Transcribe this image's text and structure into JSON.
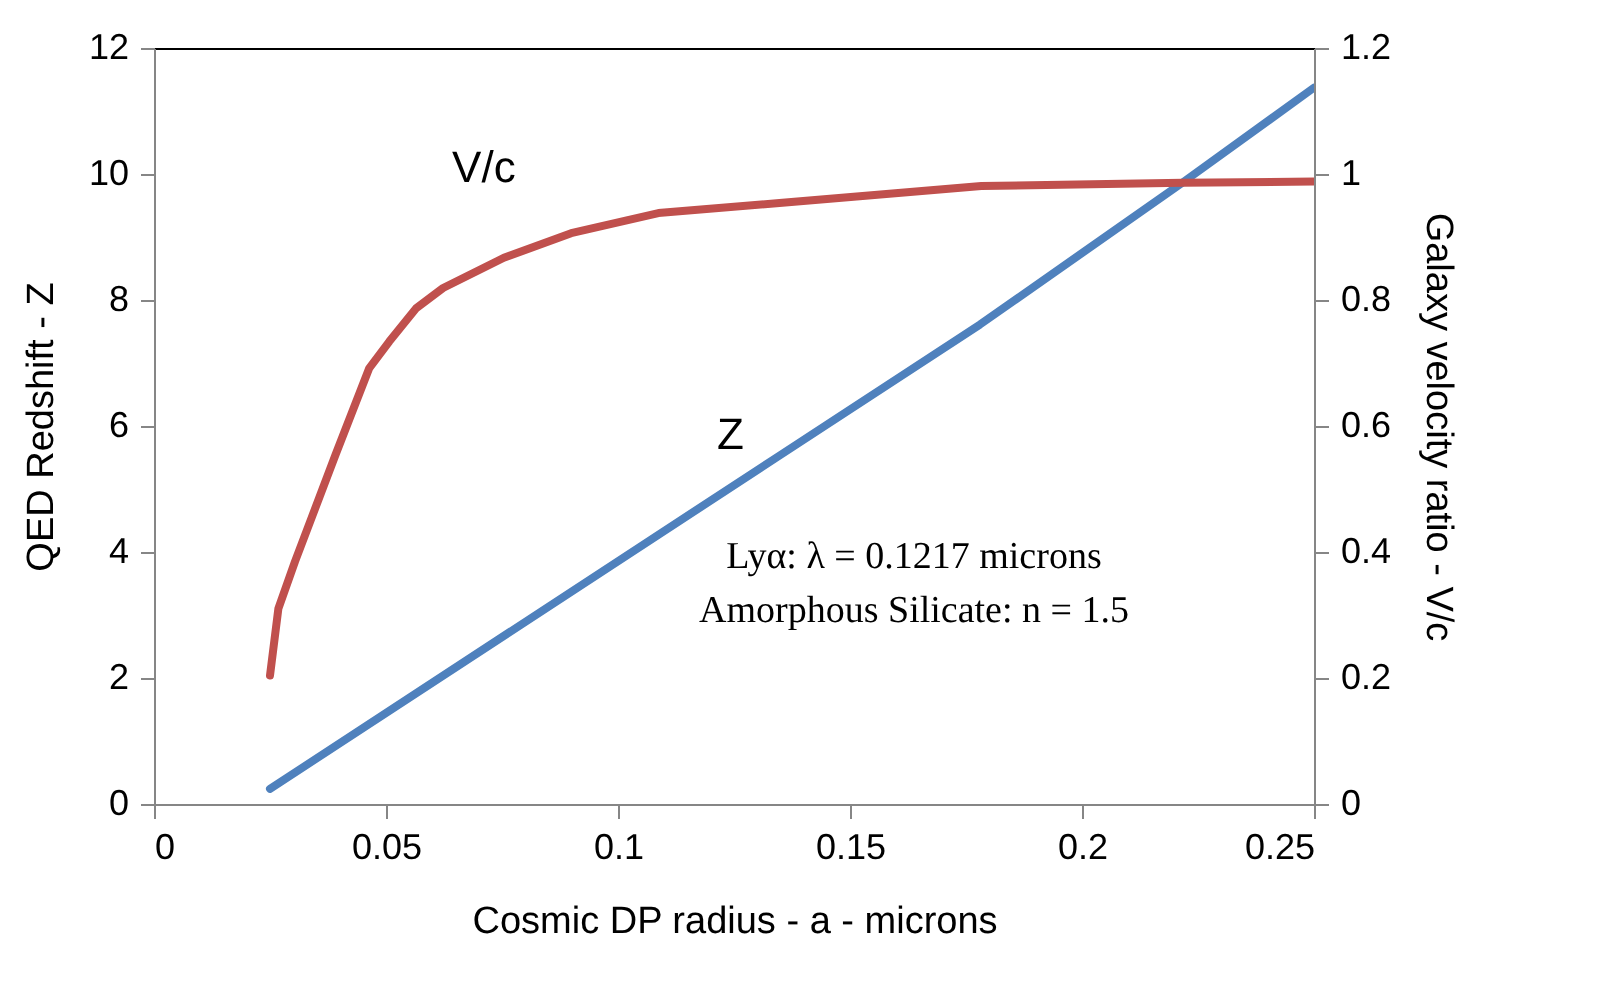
{
  "chart_data": {
    "type": "line",
    "xlabel": "Cosmic  DP radius - a - microns",
    "ylabel": "QED Redshift - Z",
    "y2label": "Galaxy velocity  ratio -  V/c",
    "xlim": [
      0,
      0.25
    ],
    "xticks": [
      0,
      0.05,
      0.1,
      0.15,
      0.2,
      0.25
    ],
    "ylim": [
      0,
      12
    ],
    "yticks": [
      0,
      2,
      4,
      6,
      8,
      10,
      12
    ],
    "y2lim": [
      0,
      1.2
    ],
    "y2ticks": [
      0,
      0.2,
      0.4,
      0.6,
      0.8,
      1,
      1.2
    ],
    "series": [
      {
        "name": "Z",
        "color": "#4f81bd",
        "x": [
          0.025,
          0.135,
          0.178,
          0.222,
          0.25
        ],
        "values": [
          0.24,
          5.54,
          7.61,
          9.88,
          11.37
        ]
      },
      {
        "name": "V/c",
        "color": "#c0504d",
        "axis": "y2",
        "x": [
          0.025,
          0.0268,
          0.0304,
          0.0391,
          0.0464,
          0.0507,
          0.0565,
          0.0623,
          0.0754,
          0.0899,
          0.1087,
          0.1348,
          0.1783,
          0.2217,
          0.25
        ],
        "values": [
          0.204,
          0.31,
          0.385,
          0.554,
          0.692,
          0.734,
          0.787,
          0.819,
          0.867,
          0.906,
          0.938,
          0.954,
          0.981,
          0.986,
          0.988
        ]
      }
    ],
    "annotations": [
      "Lyα: λ = 0.1217 microns",
      "Amorphous Silicate: n = 1.5"
    ],
    "marker": "none"
  }
}
